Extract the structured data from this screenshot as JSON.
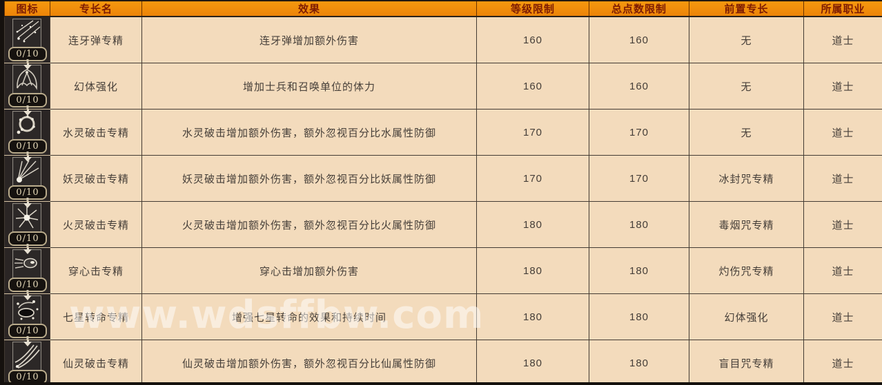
{
  "watermark": "www.wdsffbw.com",
  "colors": {
    "header_bg": "#ee8a0e",
    "header_text": "#7e1c03",
    "body_bg": "#f3dbbc",
    "icon_cell_bg": "#2a2524",
    "border": "#433b33",
    "badge_text": "#e6d9b8"
  },
  "table": {
    "columns": [
      {
        "key": "icon",
        "label": "图标"
      },
      {
        "key": "name",
        "label": "专长名"
      },
      {
        "key": "effect",
        "label": "效果"
      },
      {
        "key": "level",
        "label": "等级限制"
      },
      {
        "key": "points",
        "label": "总点数限制"
      },
      {
        "key": "prereq",
        "label": "前置专长"
      },
      {
        "key": "class",
        "label": "所属职业"
      }
    ],
    "rows": [
      {
        "icon": "multi-fang-shot",
        "badge": "0/10",
        "arrow": false,
        "name": "连牙弹专精",
        "effect": "连牙弹增加额外伤害",
        "level": "160",
        "points": "160",
        "prereq": "无",
        "class": "道士"
      },
      {
        "icon": "phantom-wing",
        "badge": "0/10",
        "arrow": true,
        "name": "幻体强化",
        "effect": "增加士兵和召唤单位的体力",
        "level": "160",
        "points": "160",
        "prereq": "无",
        "class": "道士"
      },
      {
        "icon": "water-ring-burst",
        "badge": "0/10",
        "arrow": true,
        "name": "水灵破击专精",
        "effect": "水灵破击增加额外伤害，额外忽视百分比水属性防御",
        "level": "170",
        "points": "170",
        "prereq": "无",
        "class": "道士"
      },
      {
        "icon": "demon-ray-burst",
        "badge": "0/10",
        "arrow": true,
        "name": "妖灵破击专精",
        "effect": "妖灵破击增加额外伤害，额外忽视百分比妖属性防御",
        "level": "170",
        "points": "170",
        "prereq": "冰封咒专精",
        "class": "道士"
      },
      {
        "icon": "fire-spark-burst",
        "badge": "0/10",
        "arrow": true,
        "name": "火灵破击专精",
        "effect": "火灵破击增加额外伤害，额外忽视百分比火属性防御",
        "level": "180",
        "points": "180",
        "prereq": "毒烟咒专精",
        "class": "道士"
      },
      {
        "icon": "piercing-shot",
        "badge": "0/10",
        "arrow": true,
        "name": "穿心击专精",
        "effect": "穿心击增加额外伤害",
        "level": "180",
        "points": "180",
        "prereq": "灼伤咒专精",
        "class": "道士"
      },
      {
        "icon": "star-vortex",
        "badge": "0/10",
        "arrow": true,
        "name": "七星转命专精",
        "effect": "增强七星转命的效果和持续时间",
        "level": "180",
        "points": "180",
        "prereq": "幻体强化",
        "class": "道士"
      },
      {
        "icon": "immortal-slash",
        "badge": "0/10",
        "arrow": true,
        "name": "仙灵破击专精",
        "effect": "仙灵破击增加额外伤害，额外忽视百分比仙属性防御",
        "level": "180",
        "points": "180",
        "prereq": "盲目咒专精",
        "class": "道士"
      }
    ]
  }
}
